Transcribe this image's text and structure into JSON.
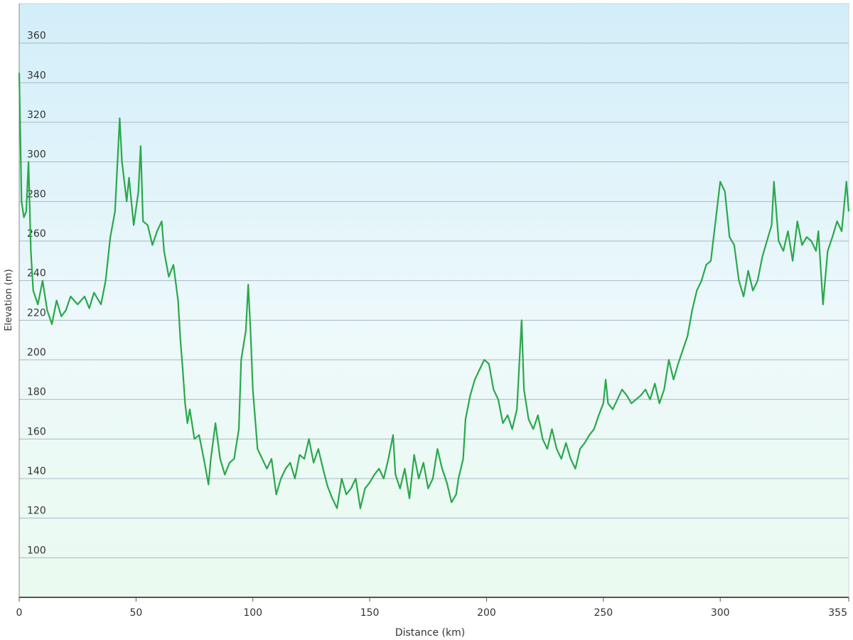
{
  "chart_data": {
    "type": "line",
    "x_label": "Distance  (km)",
    "y_label": "Elevation (m)",
    "x": [
      0,
      1,
      2,
      3,
      4,
      5,
      6,
      8,
      10,
      12,
      14,
      16,
      18,
      20,
      22,
      25,
      28,
      30,
      32,
      35,
      37,
      39,
      41,
      43,
      44,
      46,
      47,
      49,
      51,
      52,
      53,
      55,
      57,
      59,
      61,
      62,
      64,
      66,
      68,
      69,
      70,
      71,
      72,
      73,
      75,
      77,
      79,
      81,
      82,
      84,
      86,
      88,
      90,
      92,
      94,
      95,
      97,
      98,
      99,
      100,
      102,
      104,
      106,
      108,
      110,
      112,
      114,
      116,
      118,
      120,
      122,
      124,
      126,
      128,
      130,
      132,
      134,
      136,
      138,
      140,
      142,
      144,
      146,
      148,
      150,
      152,
      154,
      156,
      158,
      160,
      161,
      163,
      165,
      167,
      169,
      171,
      173,
      175,
      177,
      179,
      181,
      183,
      185,
      187,
      188,
      190,
      191,
      193,
      195,
      197,
      199,
      201,
      203,
      205,
      207,
      209,
      211,
      213,
      215,
      216,
      218,
      220,
      222,
      224,
      226,
      228,
      230,
      232,
      234,
      236,
      238,
      240,
      242,
      244,
      246,
      248,
      250,
      251,
      252,
      254,
      256,
      258,
      260,
      262,
      264,
      266,
      268,
      270,
      272,
      274,
      276,
      278,
      280,
      282,
      284,
      286,
      288,
      290,
      292,
      294,
      296,
      298,
      300,
      302,
      304,
      306,
      308,
      310,
      312,
      314,
      316,
      318,
      320,
      322,
      323,
      325,
      327,
      329,
      331,
      333,
      335,
      337,
      339,
      341,
      342,
      344,
      346,
      348,
      350,
      352,
      354,
      355
    ],
    "values": [
      345,
      280,
      272,
      275,
      300,
      255,
      235,
      228,
      240,
      225,
      218,
      230,
      222,
      225,
      232,
      228,
      232,
      226,
      234,
      228,
      240,
      262,
      275,
      322,
      300,
      280,
      292,
      268,
      285,
      308,
      270,
      268,
      258,
      265,
      270,
      255,
      242,
      248,
      230,
      210,
      195,
      178,
      168,
      175,
      160,
      162,
      150,
      137,
      150,
      168,
      150,
      142,
      148,
      150,
      165,
      200,
      215,
      238,
      215,
      185,
      155,
      150,
      145,
      150,
      132,
      140,
      145,
      148,
      140,
      152,
      150,
      160,
      148,
      155,
      145,
      136,
      130,
      125,
      140,
      132,
      135,
      140,
      125,
      135,
      138,
      142,
      145,
      140,
      150,
      162,
      142,
      135,
      145,
      130,
      152,
      140,
      148,
      135,
      140,
      155,
      145,
      138,
      128,
      132,
      140,
      150,
      170,
      182,
      190,
      195,
      200,
      198,
      185,
      180,
      168,
      172,
      165,
      175,
      220,
      185,
      170,
      165,
      172,
      160,
      155,
      165,
      155,
      150,
      158,
      150,
      145,
      155,
      158,
      162,
      165,
      172,
      178,
      190,
      178,
      175,
      180,
      185,
      182,
      178,
      180,
      182,
      185,
      180,
      188,
      178,
      185,
      200,
      190,
      198,
      205,
      212,
      225,
      235,
      240,
      248,
      250,
      270,
      290,
      285,
      262,
      258,
      240,
      232,
      245,
      235,
      240,
      252,
      260,
      268,
      290,
      260,
      255,
      265,
      250,
      270,
      258,
      262,
      260,
      255,
      265,
      228,
      255,
      262,
      270,
      265,
      290,
      275
    ],
    "color": "#2aa84a",
    "xlim": [
      0,
      355
    ],
    "xticks": [
      0,
      50,
      100,
      150,
      200,
      250,
      300,
      355
    ],
    "ylim": [
      80,
      380
    ],
    "yticks": [
      100,
      120,
      140,
      160,
      180,
      200,
      220,
      240,
      260,
      280,
      300,
      320,
      340,
      360
    ],
    "grid": true
  }
}
